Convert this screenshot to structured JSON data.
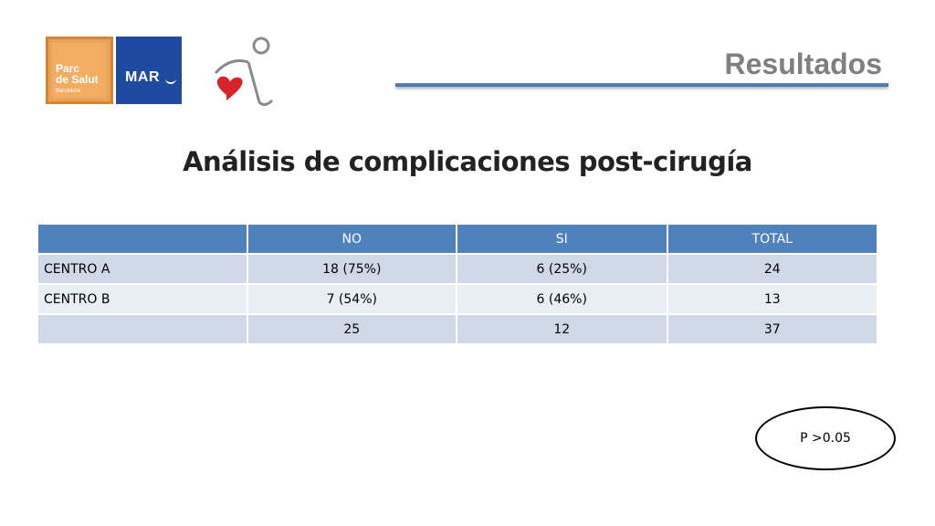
{
  "header": {
    "title": "Resultados",
    "logo_parc_line1": "Parc",
    "logo_parc_line2": "de Salut",
    "logo_parc_line3": "Barcelona",
    "logo_mar": "MAR"
  },
  "slide_title": "Análisis de complicaciones post-cirugía",
  "table": {
    "columns": [
      "",
      "NO",
      "SI",
      "TOTAL"
    ],
    "rows": [
      [
        "CENTRO A",
        "18 (75%)",
        "6  (25%)",
        "24"
      ],
      [
        "CENTRO B",
        "7 (54%)",
        "6  (46%)",
        "13"
      ],
      [
        "",
        "25",
        "12",
        "37"
      ]
    ]
  },
  "pvalue": "P >0.05",
  "colors": {
    "table_header": "#4f81bd",
    "row_odd": "#d0d8e8",
    "row_even": "#e9edf4",
    "rule": "#4a73ac",
    "logo_orange": "#f2ad63",
    "logo_blue": "#1f4aa1"
  }
}
